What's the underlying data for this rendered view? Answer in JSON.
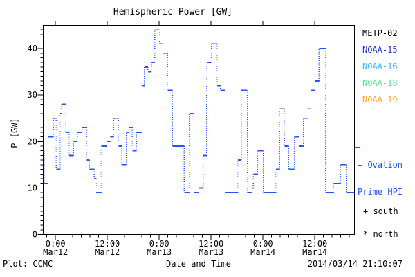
{
  "title": "Hemispheric Power [GW]",
  "colors": {
    "axis": "#000000",
    "line": "#2255ee",
    "metp02": "#000000",
    "noaa15": "#2233cc",
    "noaa16": "#33bbff",
    "noaa18": "#55e68c",
    "noaa19": "#ffa928"
  },
  "legend": {
    "satellites": [
      {
        "label": "METP-02",
        "color": "#000000"
      },
      {
        "label": "NOAA-15",
        "color": "#2233cc"
      },
      {
        "label": "NOAA-16",
        "color": "#33bbff"
      },
      {
        "label": "NOAA-18",
        "color": "#55e68c"
      },
      {
        "label": "NOAA-19",
        "color": "#ffa928"
      }
    ],
    "ovation_line1": "— Ovation",
    "ovation_line2": "Prime HPI",
    "south": "+ south",
    "north": "* north"
  },
  "footer": {
    "plot_credit": "Plot: CCMC",
    "timestamp": "2014/03/14 21:10:07"
  },
  "chart_data": {
    "type": "line",
    "style": "step, solid horizontal segments with dotted vertical connectors",
    "title": "Hemispheric Power [GW]",
    "xlabel": "Date and Time",
    "ylabel": "P [GW]",
    "ylim": [
      0,
      45
    ],
    "y_major_ticks": [
      0,
      10,
      20,
      30,
      40
    ],
    "y_minor_step": 1,
    "x_span_hours": 72,
    "x_start": "2014/03/11 21:10",
    "x_end": "2014/03/14 21:10",
    "x_major_tick_labels": [
      {
        "time": "0:00",
        "date": "Mar12"
      },
      {
        "time": "12:00",
        "date": "Mar12"
      },
      {
        "time": "0:00",
        "date": "Mar13"
      },
      {
        "time": "12:00",
        "date": "Mar13"
      },
      {
        "time": "0:00",
        "date": "Mar14"
      },
      {
        "time": "12:00",
        "date": "Mar14"
      }
    ],
    "x_first_major_hour": 2.8333,
    "x_major_step_hours": 12,
    "x_minor_step_hours": 2,
    "grid": false,
    "legend_position": "right",
    "series": [
      {
        "name": "Ovation Prime HPI",
        "color": "#2255ee",
        "units": "GW",
        "steps_t_hours_value_gw": [
          [
            0,
            18
          ],
          [
            0.2,
            11
          ],
          [
            1.1,
            21
          ],
          [
            2.4,
            25
          ],
          [
            3.0,
            14
          ],
          [
            3.9,
            26
          ],
          [
            4.2,
            28
          ],
          [
            5.2,
            22
          ],
          [
            6.0,
            17
          ],
          [
            7.0,
            20
          ],
          [
            7.9,
            22
          ],
          [
            9.0,
            23
          ],
          [
            10.1,
            16
          ],
          [
            10.7,
            14
          ],
          [
            11.8,
            12
          ],
          [
            12.3,
            9
          ],
          [
            13.4,
            19
          ],
          [
            14.7,
            20
          ],
          [
            15.5,
            21
          ],
          [
            16.3,
            25
          ],
          [
            17.4,
            19
          ],
          [
            18.2,
            15
          ],
          [
            19.2,
            22
          ],
          [
            19.9,
            23
          ],
          [
            20.6,
            18
          ],
          [
            21.6,
            22
          ],
          [
            22.9,
            32
          ],
          [
            23.4,
            36
          ],
          [
            24.2,
            35
          ],
          [
            25.0,
            37
          ],
          [
            25.8,
            44
          ],
          [
            26.9,
            41
          ],
          [
            27.7,
            39
          ],
          [
            28.8,
            31
          ],
          [
            29.9,
            19
          ],
          [
            32.6,
            9
          ],
          [
            33.8,
            26
          ],
          [
            34.9,
            9
          ],
          [
            36.0,
            10
          ],
          [
            37.0,
            17
          ],
          [
            37.8,
            37
          ],
          [
            38.9,
            41
          ],
          [
            40.2,
            32
          ],
          [
            41.0,
            31
          ],
          [
            42.1,
            9
          ],
          [
            45.0,
            16
          ],
          [
            45.8,
            31
          ],
          [
            47.2,
            9
          ],
          [
            48.2,
            10
          ],
          [
            48.6,
            13
          ],
          [
            49.6,
            18
          ],
          [
            50.9,
            9
          ],
          [
            53.8,
            14
          ],
          [
            54.7,
            27
          ],
          [
            55.8,
            19
          ],
          [
            56.8,
            14
          ],
          [
            58.1,
            21
          ],
          [
            59.2,
            19
          ],
          [
            60.2,
            25
          ],
          [
            61.3,
            27
          ],
          [
            61.9,
            31
          ],
          [
            62.9,
            33
          ],
          [
            63.8,
            40
          ],
          [
            65.3,
            9
          ],
          [
            67.2,
            11
          ],
          [
            68.8,
            15
          ],
          [
            70.1,
            9
          ]
        ],
        "end_marker_value_gw": 18.7
      }
    ]
  }
}
